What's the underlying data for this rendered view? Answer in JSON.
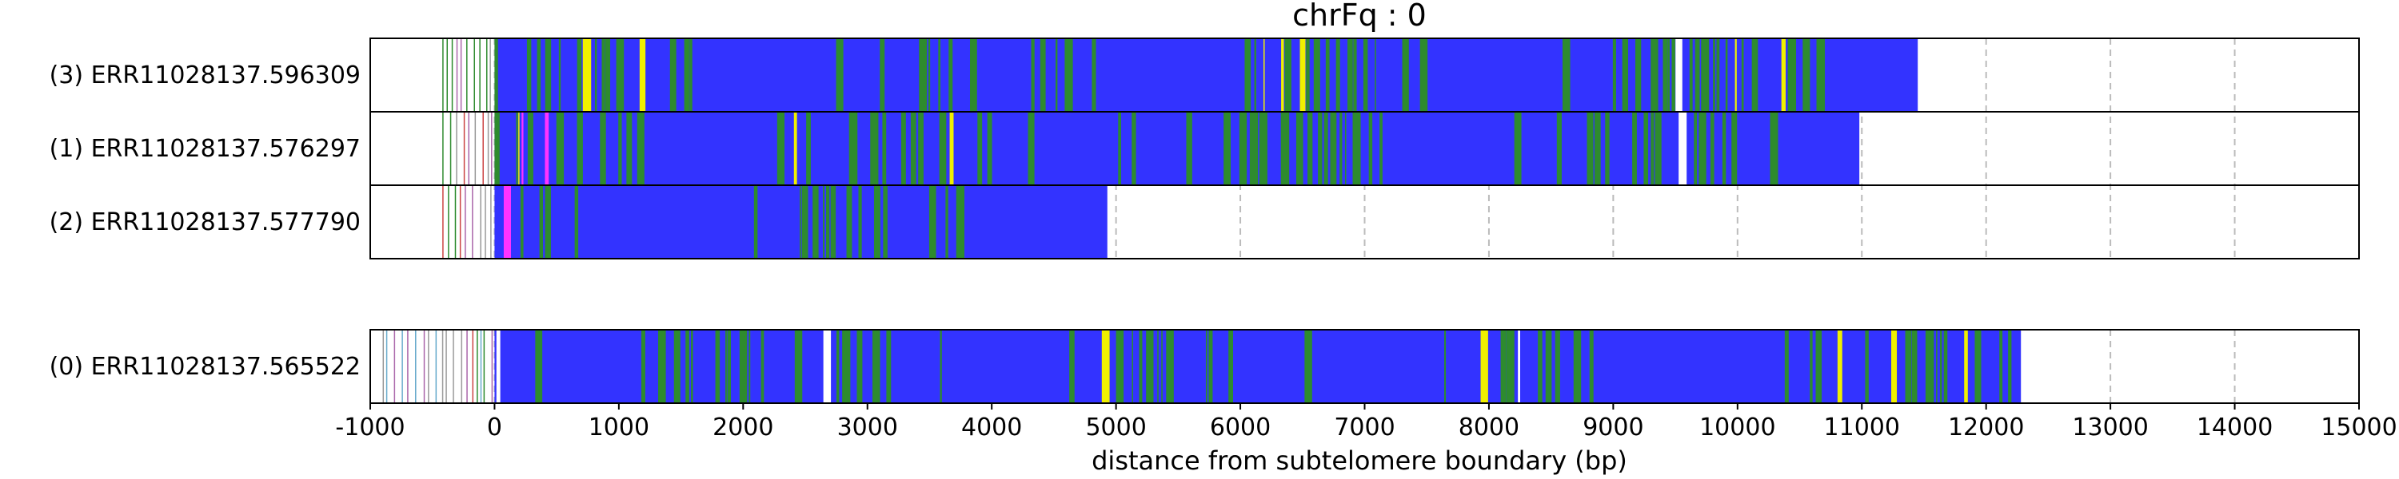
{
  "chart_data": {
    "type": "bar",
    "title": "chrFq : 0",
    "xlabel": "distance from subtelomere boundary (bp)",
    "ylabel": "",
    "xlim": [
      -1000,
      15000
    ],
    "xticks": [
      -1000,
      0,
      1000,
      2000,
      3000,
      4000,
      5000,
      6000,
      7000,
      8000,
      9000,
      10000,
      11000,
      12000,
      13000,
      14000,
      15000
    ],
    "grid": "vertical dashed",
    "colors": {
      "blue": "#3333ff",
      "green": "#2e8b2e",
      "yellow": "#f0f000",
      "magenta": "#ff33ff",
      "white": "#ffffff",
      "gridline": "#bbbbbb"
    },
    "reads": [
      {
        "label": "(3) ERR11028137.596309",
        "group": 0,
        "start": -420,
        "end": 11450
      },
      {
        "label": "(1) ERR11028137.576297",
        "group": 0,
        "start": -420,
        "end": 10980
      },
      {
        "label": "(2) ERR11028137.577790",
        "group": 0,
        "start": -420,
        "end": 4930
      },
      {
        "label": "(0) ERR11028137.565522",
        "group": 1,
        "start": -900,
        "end": 12280
      }
    ]
  }
}
